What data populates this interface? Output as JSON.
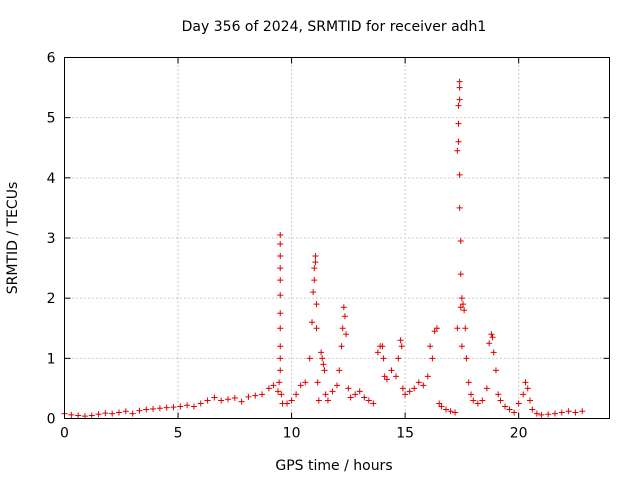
{
  "chart_data": {
    "type": "scatter",
    "title": "Day 356 of 2024, SRMTID for receiver adh1",
    "xlabel": "GPS time / hours",
    "ylabel": "SRMTID / TECUs",
    "xlim": [
      0,
      24
    ],
    "ylim": [
      0,
      6
    ],
    "xticks": [
      0,
      5,
      10,
      15,
      20
    ],
    "yticks": [
      0,
      1,
      2,
      3,
      4,
      5,
      6
    ],
    "grid": true,
    "marker": "+",
    "color": "#e00000",
    "series": [
      {
        "name": "SRMTID",
        "x": [
          0.0,
          0.3,
          0.6,
          0.9,
          1.2,
          1.5,
          1.8,
          2.1,
          2.4,
          2.7,
          3.0,
          3.3,
          3.6,
          3.9,
          4.2,
          4.5,
          4.8,
          5.1,
          5.4,
          5.7,
          6.0,
          6.3,
          6.6,
          6.9,
          7.2,
          7.5,
          7.8,
          8.1,
          8.4,
          8.7,
          9.0,
          9.2,
          9.4,
          9.45,
          9.5,
          9.5,
          9.5,
          9.5,
          9.5,
          9.5,
          9.5,
          9.5,
          9.5,
          9.5,
          9.5,
          9.55,
          9.6,
          9.8,
          10.0,
          10.2,
          10.4,
          10.6,
          10.8,
          10.9,
          10.95,
          11.0,
          11.0,
          11.05,
          11.05,
          11.1,
          11.1,
          11.15,
          11.2,
          11.3,
          11.35,
          11.4,
          11.45,
          11.5,
          11.6,
          11.8,
          12.0,
          12.1,
          12.2,
          12.25,
          12.3,
          12.35,
          12.4,
          12.5,
          12.6,
          12.8,
          13.0,
          13.2,
          13.4,
          13.6,
          13.8,
          13.9,
          14.0,
          14.05,
          14.1,
          14.2,
          14.4,
          14.6,
          14.7,
          14.8,
          14.85,
          14.9,
          15.0,
          15.2,
          15.4,
          15.6,
          15.8,
          16.0,
          16.1,
          16.2,
          16.3,
          16.4,
          16.5,
          16.6,
          16.8,
          17.0,
          17.2,
          17.3,
          17.3,
          17.35,
          17.35,
          17.35,
          17.4,
          17.4,
          17.4,
          17.4,
          17.4,
          17.45,
          17.45,
          17.45,
          17.5,
          17.5,
          17.55,
          17.6,
          17.65,
          17.7,
          17.8,
          17.9,
          18.0,
          18.2,
          18.4,
          18.6,
          18.7,
          18.8,
          18.85,
          18.9,
          19.0,
          19.1,
          19.2,
          19.4,
          19.6,
          19.8,
          20.0,
          20.2,
          20.3,
          20.4,
          20.5,
          20.6,
          20.8,
          21.0,
          21.3,
          21.6,
          21.9,
          22.2,
          22.5,
          22.8
        ],
        "y": [
          0.08,
          0.06,
          0.05,
          0.04,
          0.05,
          0.07,
          0.09,
          0.08,
          0.1,
          0.12,
          0.08,
          0.13,
          0.15,
          0.16,
          0.17,
          0.18,
          0.19,
          0.2,
          0.22,
          0.2,
          0.25,
          0.3,
          0.35,
          0.3,
          0.32,
          0.34,
          0.28,
          0.36,
          0.38,
          0.4,
          0.5,
          0.55,
          0.45,
          0.6,
          0.8,
          1.0,
          1.2,
          1.5,
          1.75,
          2.05,
          2.3,
          2.5,
          2.7,
          2.9,
          3.05,
          0.4,
          0.25,
          0.25,
          0.3,
          0.4,
          0.55,
          0.6,
          1.0,
          1.6,
          2.1,
          2.3,
          2.5,
          2.6,
          2.7,
          1.9,
          1.5,
          0.6,
          0.3,
          1.1,
          1.0,
          0.9,
          0.8,
          0.4,
          0.3,
          0.45,
          0.55,
          0.8,
          1.2,
          1.5,
          1.85,
          1.7,
          1.4,
          0.5,
          0.35,
          0.4,
          0.45,
          0.35,
          0.3,
          0.25,
          1.1,
          1.2,
          1.2,
          1.0,
          0.7,
          0.65,
          0.8,
          0.7,
          1.0,
          1.3,
          1.2,
          0.5,
          0.4,
          0.45,
          0.5,
          0.6,
          0.55,
          0.7,
          1.2,
          1.0,
          1.45,
          1.5,
          0.25,
          0.2,
          0.15,
          0.12,
          0.1,
          1.5,
          4.45,
          4.6,
          4.9,
          5.2,
          5.5,
          5.6,
          5.3,
          4.05,
          3.5,
          2.95,
          2.4,
          1.85,
          1.2,
          2.0,
          1.9,
          1.8,
          1.5,
          1.0,
          0.6,
          0.4,
          0.3,
          0.25,
          0.3,
          0.5,
          1.25,
          1.4,
          1.35,
          1.1,
          0.8,
          0.4,
          0.3,
          0.2,
          0.15,
          0.1,
          0.25,
          0.4,
          0.6,
          0.5,
          0.3,
          0.15,
          0.08,
          0.06,
          0.07,
          0.08,
          0.1,
          0.12,
          0.1,
          0.12
        ]
      }
    ]
  }
}
